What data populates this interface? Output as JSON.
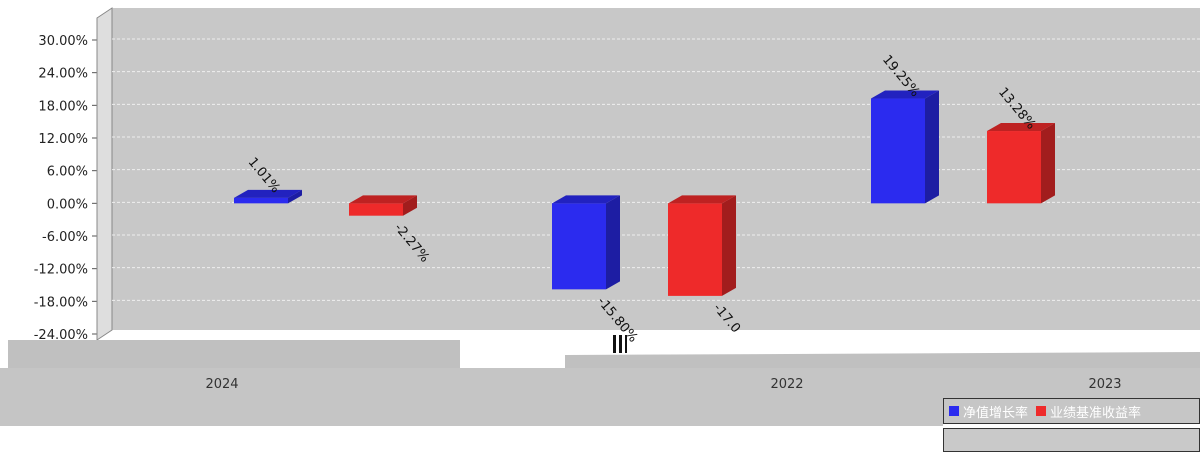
{
  "chart_data": {
    "type": "bar",
    "categories": [
      "2024",
      "2022",
      "2023"
    ],
    "series": [
      {
        "name": "净值增长率",
        "color": "#2b2bef",
        "values": [
          1.01,
          -15.8,
          19.25
        ]
      },
      {
        "name": "业绩基准收益率",
        "color": "#ee2a2a",
        "values": [
          -2.27,
          -17.0,
          13.28
        ]
      }
    ],
    "data_labels": [
      [
        "1.01%",
        "-15.80%",
        "19.25%"
      ],
      [
        "-2.27%",
        "-17.0",
        "13.28%"
      ]
    ],
    "y_ticks": [
      "30.00%",
      "24.00%",
      "18.00%",
      "12.00%",
      "6.00%",
      "0.00%",
      "-6.00%",
      "-12.00%",
      "-18.00%",
      "-24.00%"
    ],
    "ylim": [
      -24,
      30
    ],
    "grid": true,
    "legend_position": "bottom-right"
  }
}
